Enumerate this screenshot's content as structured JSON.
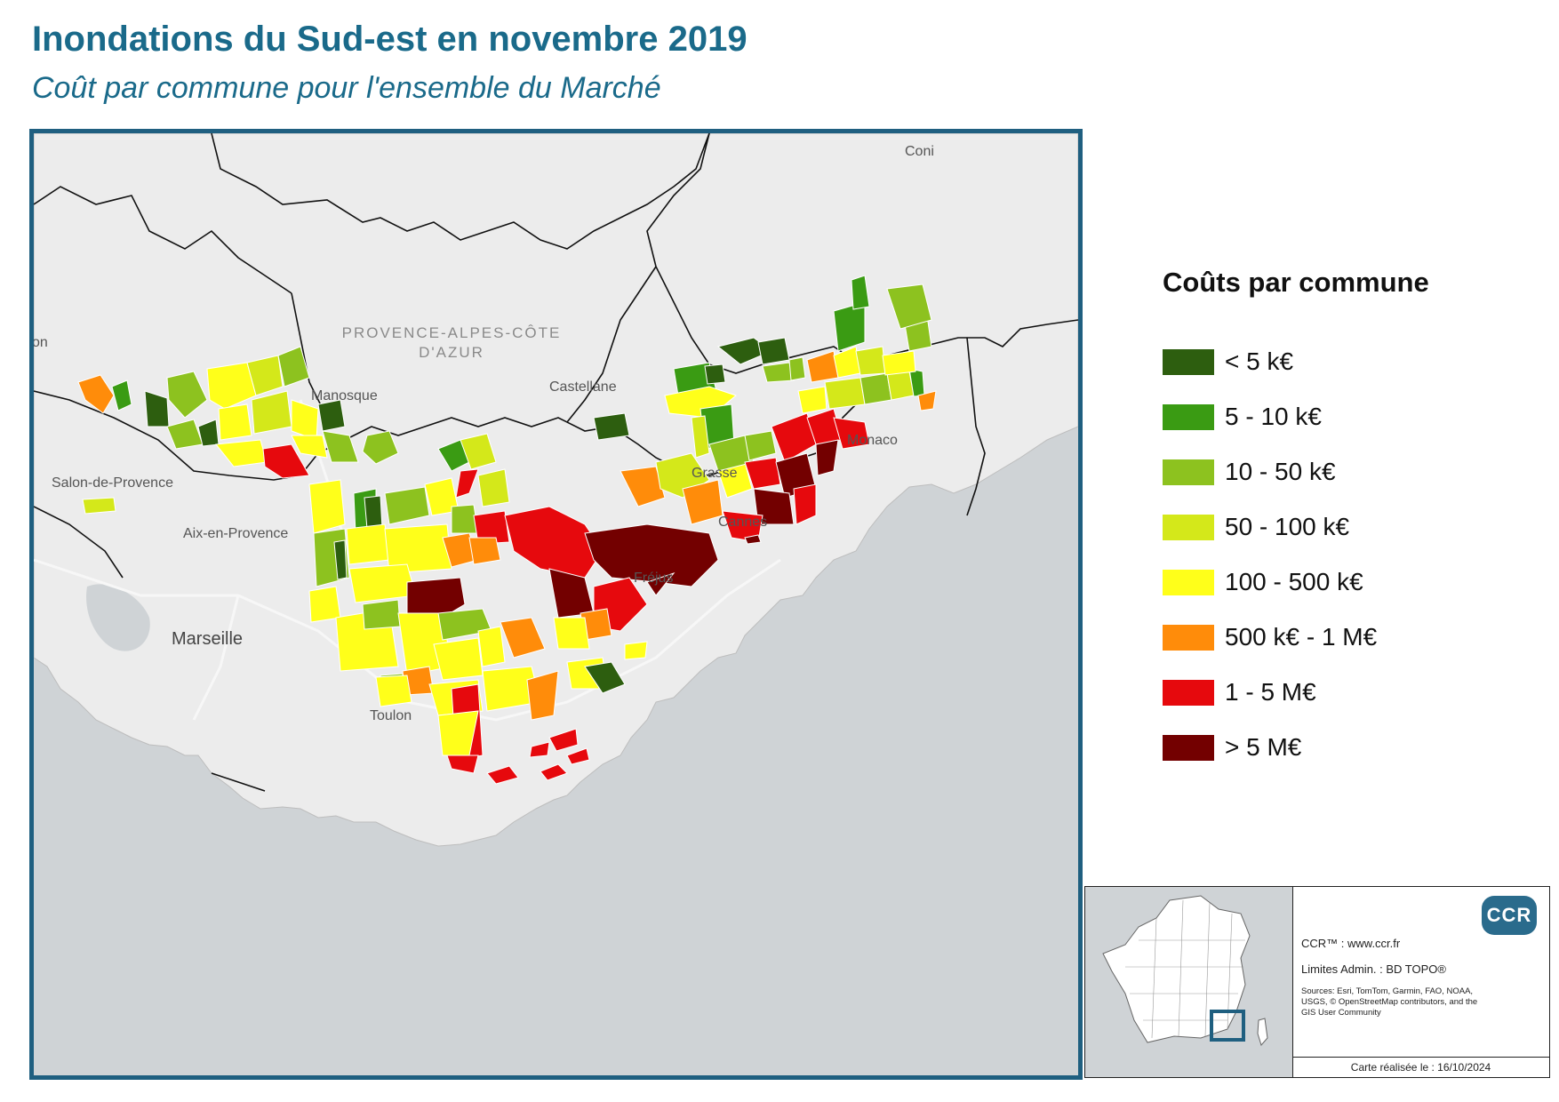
{
  "title": "Inondations du Sud-est en novembre 2019",
  "subtitle": "Coût par commune pour l'ensemble du Marché",
  "map": {
    "region_label": [
      "PROVENCE-ALPES-CÔTE",
      "D'AZUR"
    ],
    "places": {
      "coni": "Coni",
      "manosque": "Manosque",
      "castellane": "Castellane",
      "salon": "Salon-de-Provence",
      "aix": "Aix-en-Provence",
      "marseille": "Marseille",
      "toulon": "Toulon",
      "frejus": "Fréjus",
      "grasse": "Grasse",
      "cannes": "Cannes",
      "monaco": "Monaco",
      "edge": "on"
    }
  },
  "legend": {
    "title": "Coûts par commune",
    "classes": [
      {
        "label": "< 5 k€",
        "color": "#2d5e0f"
      },
      {
        "label": "5 - 10 k€",
        "color": "#3a9b13"
      },
      {
        "label": "10 - 50 k€",
        "color": "#8dc21f"
      },
      {
        "label": "50 - 100 k€",
        "color": "#d4e81a"
      },
      {
        "label": "100 - 500 k€",
        "color": "#ffff1a"
      },
      {
        "label": "500 k€ - 1 M€",
        "color": "#ff8c0a"
      },
      {
        "label": "1 - 5 M€",
        "color": "#e6090d"
      },
      {
        "label": "> 5 M€",
        "color": "#730000"
      }
    ]
  },
  "credits": {
    "logo": "CCR",
    "site": "CCR™ : www.ccr.fr",
    "limits": "Limites Admin. : BD TOPO®",
    "sources": "Sources: Esri, TomTom, Garmin, FAO, NOAA, USGS, © OpenStreetMap contributors, and the GIS User Community",
    "date": "Carte réalisée le : 16/10/2024"
  }
}
